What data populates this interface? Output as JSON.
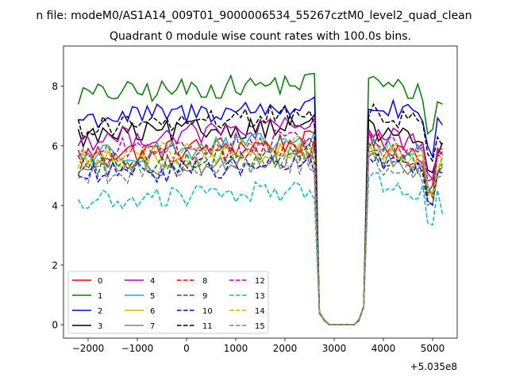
{
  "chart_data": {
    "type": "line",
    "suptitle": "n file: modeM0/AS1A14_009T01_9000006534_55267cztM0_level2_quad_clean",
    "title": "Quadrant 0 module wise count rates with 100.0s bins.",
    "xlabel": "",
    "ylabel": "",
    "x_offset_label": "+5.035e8",
    "xlim": [
      -2500,
      5500
    ],
    "ylim": [
      -0.45,
      9.35
    ],
    "xticks": [
      -2000,
      -1000,
      0,
      1000,
      2000,
      3000,
      4000,
      5000
    ],
    "xtick_labels": [
      "−2000",
      "−1000",
      "0",
      "1000",
      "2000",
      "3000",
      "4000",
      "5000"
    ],
    "yticks": [
      0,
      2,
      4,
      6,
      8
    ],
    "ytick_labels": [
      "0",
      "2",
      "4",
      "6",
      "8"
    ],
    "x_start": -2200,
    "x_step": 100,
    "n_points": 75,
    "gap": {
      "from": 2700,
      "to": 3500,
      "drop_points": [
        [
          2700,
          0.4
        ],
        [
          2800,
          0.15
        ],
        [
          3500,
          0.15
        ],
        [
          3600,
          0.6
        ]
      ]
    },
    "legend": {
      "location": "lower-left",
      "columns": 4
    },
    "series": [
      {
        "name": "0",
        "color": "#ff0000",
        "dash": "solid",
        "level_pre": 5.7,
        "level_post": 6.2,
        "end": 5.7
      },
      {
        "name": "1",
        "color": "#008000",
        "dash": "solid",
        "level_pre": 7.7,
        "level_post": 8.2,
        "end": 7.4
      },
      {
        "name": "2",
        "color": "#0000ff",
        "dash": "solid",
        "level_pre": 6.9,
        "level_post": 7.4,
        "end": 6.7
      },
      {
        "name": "3",
        "color": "#000000",
        "dash": "solid",
        "level_pre": 6.3,
        "level_post": 6.6,
        "end": 6.1
      },
      {
        "name": "4",
        "color": "#bf00bf",
        "dash": "solid",
        "level_pre": 6.2,
        "level_post": 6.5,
        "end": 5.9
      },
      {
        "name": "5",
        "color": "#00bfbf",
        "dash": "solid",
        "level_pre": 5.7,
        "level_post": 6.1,
        "end": 5.8
      },
      {
        "name": "6",
        "color": "#bfbf00",
        "dash": "solid",
        "level_pre": 5.4,
        "level_post": 5.9,
        "end": 5.6
      },
      {
        "name": "7",
        "color": "#808080",
        "dash": "solid",
        "level_pre": 5.2,
        "level_post": 5.6,
        "end": 5.3
      },
      {
        "name": "8",
        "color": "#ff0000",
        "dash": "dashed",
        "level_pre": 5.5,
        "level_post": 6.0,
        "end": 5.6
      },
      {
        "name": "9",
        "color": "#008000",
        "dash": "dashed",
        "level_pre": 5.3,
        "level_post": 5.8,
        "end": 5.4
      },
      {
        "name": "10",
        "color": "#0000ff",
        "dash": "dashed",
        "level_pre": 5.0,
        "level_post": 5.6,
        "end": 5.1
      },
      {
        "name": "11",
        "color": "#000000",
        "dash": "dashed",
        "level_pre": 6.6,
        "level_post": 7.2,
        "end": 6.0
      },
      {
        "name": "12",
        "color": "#bf00bf",
        "dash": "dashed",
        "level_pre": 5.8,
        "level_post": 6.3,
        "end": 5.8
      },
      {
        "name": "13",
        "color": "#00bfbf",
        "dash": "dashed",
        "level_pre": 4.1,
        "level_post": 4.9,
        "end": 3.7
      },
      {
        "name": "14",
        "color": "#bfbf00",
        "dash": "dashed",
        "level_pre": 5.6,
        "level_post": 6.0,
        "end": 5.7
      },
      {
        "name": "15",
        "color": "#808080",
        "dash": "dashed",
        "level_pre": 5.0,
        "level_post": 5.5,
        "end": 5.0
      }
    ]
  }
}
